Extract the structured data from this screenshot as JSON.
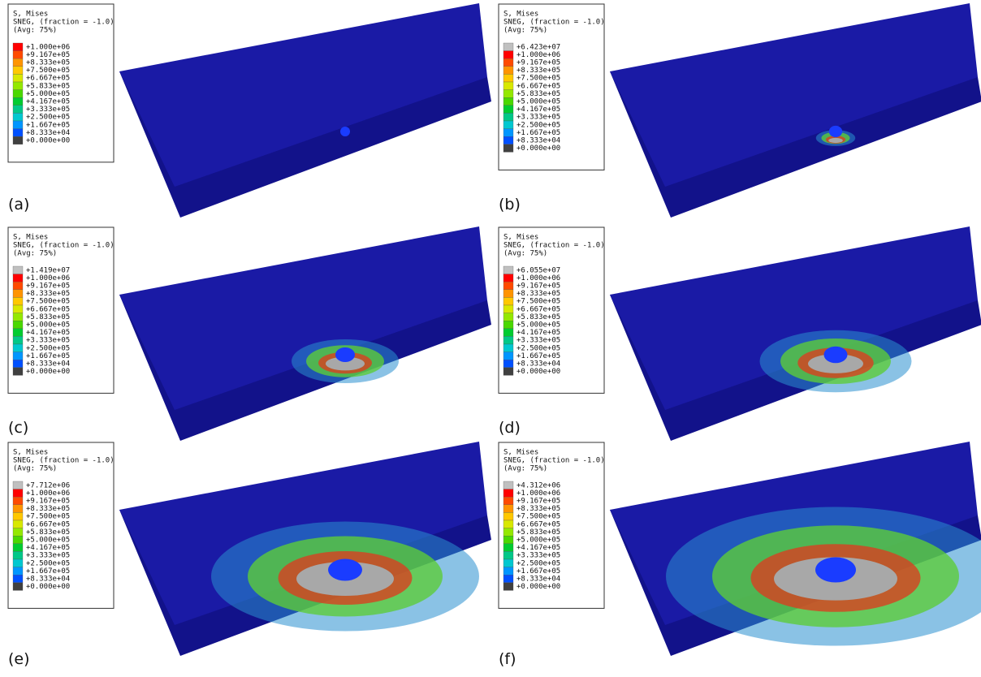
{
  "panels": [
    {
      "label": "(a)",
      "legend": {
        "lines": [
          "S, Mises",
          "SNEG, (fraction = -1.0)",
          "(Avg: 75%)"
        ],
        "values": [
          "+1.000e+06",
          "+9.167e+05",
          "+8.333e+05",
          "+7.500e+05",
          "+6.667e+05",
          "+5.833e+05",
          "+5.000e+05",
          "+4.167e+05",
          "+3.333e+05",
          "+2.500e+05",
          "+1.667e+05",
          "+8.333e+04",
          "+0.000e+00"
        ]
      }
    },
    {
      "label": "(b)",
      "legend": {
        "lines": [
          "S, Mises",
          "SNEG, (fraction = -1.0)",
          "(Avg: 75%)"
        ],
        "values": [
          "+6.423e+07",
          "+1.000e+06",
          "+9.167e+05",
          "+8.333e+05",
          "+7.500e+05",
          "+6.667e+05",
          "+5.833e+05",
          "+5.000e+05",
          "+4.167e+05",
          "+3.333e+05",
          "+2.500e+05",
          "+1.667e+05",
          "+8.333e+04",
          "+0.000e+00"
        ]
      }
    },
    {
      "label": "(c)",
      "legend": {
        "lines": [
          "S, Mises",
          "SNEG, (fraction = -1.0)",
          "(Avg: 75%)"
        ],
        "values": [
          "+1.419e+07",
          "+1.000e+06",
          "+9.167e+05",
          "+8.333e+05",
          "+7.500e+05",
          "+6.667e+05",
          "+5.833e+05",
          "+5.000e+05",
          "+4.167e+05",
          "+3.333e+05",
          "+2.500e+05",
          "+1.667e+05",
          "+8.333e+04",
          "+0.000e+00"
        ]
      }
    },
    {
      "label": "(d)",
      "legend": {
        "lines": [
          "S, Mises",
          "SNEG, (fraction = -1.0)",
          "(Avg: 75%)"
        ],
        "values": [
          "+6.055e+07",
          "+1.000e+06",
          "+9.167e+05",
          "+8.333e+05",
          "+7.500e+05",
          "+6.667e+05",
          "+5.833e+05",
          "+5.000e+05",
          "+4.167e+05",
          "+3.333e+05",
          "+2.500e+05",
          "+1.667e+05",
          "+8.333e+04",
          "+0.000e+00"
        ]
      }
    },
    {
      "label": "(e)",
      "legend": {
        "lines": [
          "S, Mises",
          "SNEG, (fraction = -1.0)",
          "(Avg: 75%)"
        ],
        "values": [
          "+7.712e+06",
          "+1.000e+06",
          "+9.167e+05",
          "+8.333e+05",
          "+7.500e+05",
          "+6.667e+05",
          "+5.833e+05",
          "+5.000e+05",
          "+4.167e+05",
          "+3.333e+05",
          "+2.500e+05",
          "+1.667e+05",
          "+8.333e+04",
          "+0.000e+00"
        ]
      }
    },
    {
      "label": "(f)",
      "legend": {
        "lines": [
          "S, Mises",
          "SNEG, (fraction = -1.0)",
          "(Avg: 75%)"
        ],
        "values": [
          "+4.312e+06",
          "+1.000e+06",
          "+9.167e+05",
          "+8.333e+05",
          "+7.500e+05",
          "+6.667e+05",
          "+5.833e+05",
          "+5.000e+05",
          "+4.167e+05",
          "+3.333e+05",
          "+2.500e+05",
          "+1.667e+05",
          "+8.333e+04",
          "+0.000e+00"
        ]
      }
    }
  ]
}
